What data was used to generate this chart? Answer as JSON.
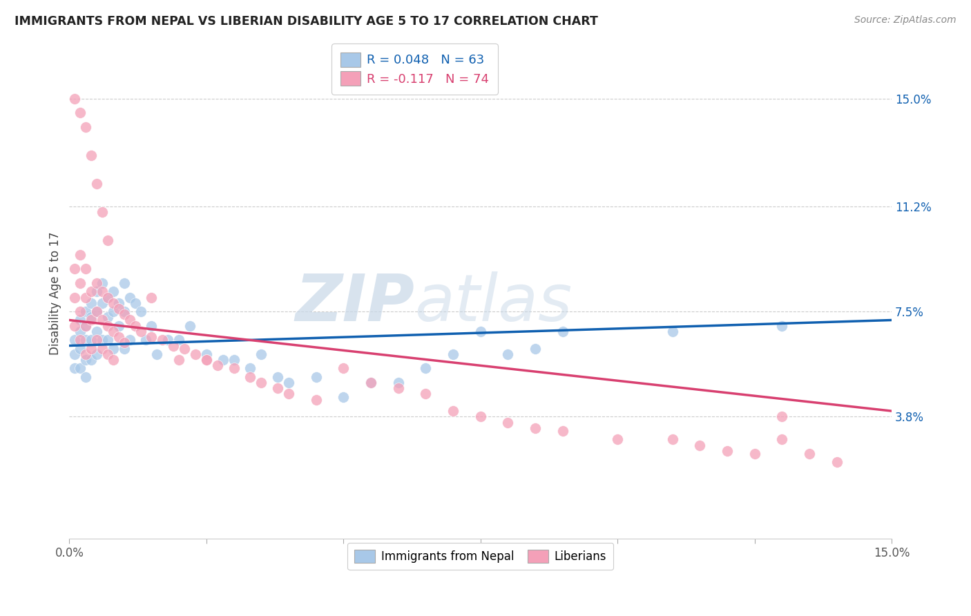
{
  "title": "IMMIGRANTS FROM NEPAL VS LIBERIAN DISABILITY AGE 5 TO 17 CORRELATION CHART",
  "source": "Source: ZipAtlas.com",
  "ylabel": "Disability Age 5 to 17",
  "ytick_labels": [
    "15.0%",
    "11.2%",
    "7.5%",
    "3.8%"
  ],
  "ytick_values": [
    0.15,
    0.112,
    0.075,
    0.038
  ],
  "xmin": 0.0,
  "xmax": 0.15,
  "ymin": -0.005,
  "ymax": 0.168,
  "legend_entry1": "R = 0.048   N = 63",
  "legend_entry2": "R = -0.117   N = 74",
  "color_nepal": "#a8c8e8",
  "color_liberia": "#f4a0b8",
  "line_color_nepal": "#1060b0",
  "line_color_liberia": "#d84070",
  "watermark_zip": "ZIP",
  "watermark_atlas": "atlas",
  "nepal_scatter_x": [
    0.001,
    0.001,
    0.001,
    0.002,
    0.002,
    0.002,
    0.002,
    0.003,
    0.003,
    0.003,
    0.003,
    0.003,
    0.004,
    0.004,
    0.004,
    0.004,
    0.005,
    0.005,
    0.005,
    0.005,
    0.006,
    0.006,
    0.006,
    0.007,
    0.007,
    0.007,
    0.008,
    0.008,
    0.008,
    0.009,
    0.009,
    0.01,
    0.01,
    0.01,
    0.011,
    0.011,
    0.012,
    0.013,
    0.014,
    0.015,
    0.016,
    0.018,
    0.02,
    0.022,
    0.025,
    0.028,
    0.03,
    0.033,
    0.035,
    0.038,
    0.04,
    0.045,
    0.05,
    0.055,
    0.06,
    0.065,
    0.07,
    0.075,
    0.08,
    0.085,
    0.09,
    0.11,
    0.13
  ],
  "nepal_scatter_y": [
    0.065,
    0.06,
    0.055,
    0.072,
    0.068,
    0.062,
    0.055,
    0.075,
    0.07,
    0.065,
    0.058,
    0.052,
    0.078,
    0.073,
    0.065,
    0.058,
    0.082,
    0.075,
    0.068,
    0.06,
    0.085,
    0.078,
    0.065,
    0.08,
    0.073,
    0.065,
    0.082,
    0.075,
    0.062,
    0.078,
    0.07,
    0.085,
    0.075,
    0.062,
    0.08,
    0.065,
    0.078,
    0.075,
    0.065,
    0.07,
    0.06,
    0.065,
    0.065,
    0.07,
    0.06,
    0.058,
    0.058,
    0.055,
    0.06,
    0.052,
    0.05,
    0.052,
    0.045,
    0.05,
    0.05,
    0.055,
    0.06,
    0.068,
    0.06,
    0.062,
    0.068,
    0.068,
    0.07
  ],
  "liberia_scatter_x": [
    0.001,
    0.001,
    0.001,
    0.002,
    0.002,
    0.002,
    0.002,
    0.003,
    0.003,
    0.003,
    0.003,
    0.004,
    0.004,
    0.004,
    0.005,
    0.005,
    0.005,
    0.006,
    0.006,
    0.006,
    0.007,
    0.007,
    0.007,
    0.008,
    0.008,
    0.008,
    0.009,
    0.009,
    0.01,
    0.01,
    0.011,
    0.012,
    0.013,
    0.015,
    0.017,
    0.019,
    0.021,
    0.023,
    0.025,
    0.027,
    0.03,
    0.033,
    0.035,
    0.038,
    0.04,
    0.045,
    0.05,
    0.055,
    0.06,
    0.065,
    0.07,
    0.075,
    0.08,
    0.085,
    0.09,
    0.1,
    0.11,
    0.115,
    0.12,
    0.125,
    0.13,
    0.135,
    0.14,
    0.001,
    0.002,
    0.003,
    0.004,
    0.005,
    0.006,
    0.007,
    0.015,
    0.02,
    0.025,
    0.13
  ],
  "liberia_scatter_y": [
    0.09,
    0.08,
    0.07,
    0.095,
    0.085,
    0.075,
    0.065,
    0.09,
    0.08,
    0.07,
    0.06,
    0.082,
    0.072,
    0.062,
    0.085,
    0.075,
    0.065,
    0.082,
    0.072,
    0.062,
    0.08,
    0.07,
    0.06,
    0.078,
    0.068,
    0.058,
    0.076,
    0.066,
    0.074,
    0.064,
    0.072,
    0.07,
    0.068,
    0.066,
    0.065,
    0.063,
    0.062,
    0.06,
    0.058,
    0.056,
    0.055,
    0.052,
    0.05,
    0.048,
    0.046,
    0.044,
    0.055,
    0.05,
    0.048,
    0.046,
    0.04,
    0.038,
    0.036,
    0.034,
    0.033,
    0.03,
    0.03,
    0.028,
    0.026,
    0.025,
    0.03,
    0.025,
    0.022,
    0.15,
    0.145,
    0.14,
    0.13,
    0.12,
    0.11,
    0.1,
    0.08,
    0.058,
    0.058,
    0.038
  ],
  "nepal_line_x0": 0.0,
  "nepal_line_y0": 0.063,
  "nepal_line_x1": 0.15,
  "nepal_line_y1": 0.072,
  "liberia_line_x0": 0.0,
  "liberia_line_y0": 0.072,
  "liberia_line_x1": 0.15,
  "liberia_line_y1": 0.04
}
